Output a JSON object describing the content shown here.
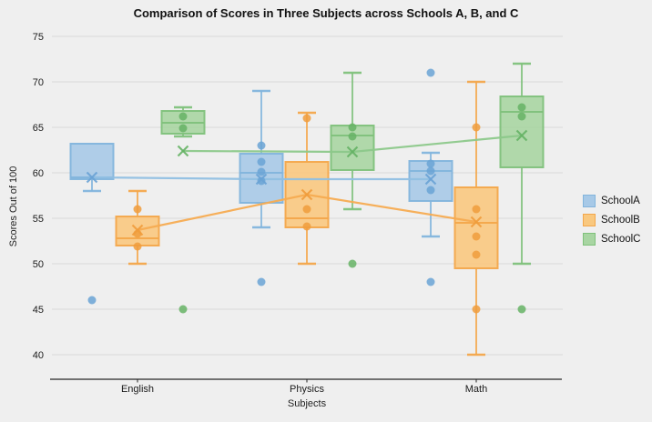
{
  "figure": {
    "background": "#efefef",
    "grid_color": "#d8d8d8",
    "axis_color": "#262626",
    "text_color": "#1a1a1a"
  },
  "chart_data": {
    "type": "boxplot",
    "title": "Comparison of Scores in Three Subjects across Schools A, B, and C",
    "xlabel": "Subjects",
    "ylabel": "Scores Out of 100",
    "categories": [
      "English",
      "Physics",
      "Math"
    ],
    "yticks": [
      40,
      45,
      50,
      55,
      60,
      65,
      70,
      75
    ],
    "ylim": [
      37.5,
      75
    ],
    "grid": "horizontal",
    "legend": {
      "position": "right",
      "entries": [
        "SchoolA",
        "SchoolB",
        "SchoolC"
      ]
    },
    "mean_markers": "x",
    "mean_trend_lines": true,
    "series": [
      {
        "name": "SchoolA",
        "color_fill": "#a7c9e7",
        "color_edge": "#82b4dc",
        "color_point": "#6aa3d5",
        "color_mean_line": "#90bfe2",
        "boxes": [
          {
            "category": "English",
            "whisker_low": 58,
            "q1": 59.3,
            "median": 59.5,
            "q3": 63.2,
            "whisker_high": 63.2,
            "mean": 59.5,
            "points": [],
            "outliers": [
              46
            ]
          },
          {
            "category": "Physics",
            "whisker_low": 54,
            "q1": 56.7,
            "median": 60,
            "q3": 62.1,
            "whisker_high": 69,
            "mean": 59.3,
            "points": [
              63,
              61.2,
              60.1,
              59.1
            ],
            "outliers": [
              48
            ]
          },
          {
            "category": "Math",
            "whisker_low": 53,
            "q1": 56.9,
            "median": 60.2,
            "q3": 61.3,
            "whisker_high": 62.2,
            "mean": 59.3,
            "points": [
              61,
              60.2,
              58.1
            ],
            "outliers": [
              71,
              48
            ]
          }
        ]
      },
      {
        "name": "SchoolB",
        "color_fill": "#f9c87f",
        "color_edge": "#f3a74b",
        "color_point": "#f09c3c",
        "color_mean_line": "#f5ab51",
        "boxes": [
          {
            "category": "English",
            "whisker_low": 50,
            "q1": 52,
            "median": 52.8,
            "q3": 55.2,
            "whisker_high": 58,
            "mean": 53.7,
            "points": [
              56,
              53.3,
              51.9
            ],
            "outliers": []
          },
          {
            "category": "Physics",
            "whisker_low": 50,
            "q1": 54,
            "median": 55,
            "q3": 61.2,
            "whisker_high": 66.6,
            "mean": 57.6,
            "points": [
              66,
              56,
              54.1
            ],
            "outliers": []
          },
          {
            "category": "Math",
            "whisker_low": 40,
            "q1": 49.5,
            "median": 54.5,
            "q3": 58.4,
            "whisker_high": 70,
            "mean": 54.6,
            "points": [
              65,
              56,
              53,
              51,
              45
            ],
            "outliers": []
          }
        ]
      },
      {
        "name": "SchoolC",
        "color_fill": "#a8d5a2",
        "color_edge": "#7fc17b",
        "color_point": "#66b365",
        "color_mean_line": "#8cc88a",
        "boxes": [
          {
            "category": "English",
            "whisker_low": 64,
            "q1": 64.3,
            "median": 65.5,
            "q3": 66.8,
            "whisker_high": 67.2,
            "mean": 62.4,
            "points": [
              66.2,
              64.9
            ],
            "outliers": [
              45
            ]
          },
          {
            "category": "Physics",
            "whisker_low": 56,
            "q1": 60.3,
            "median": 64.1,
            "q3": 65.2,
            "whisker_high": 71,
            "mean": 62.3,
            "points": [
              65,
              64
            ],
            "outliers": [
              50
            ]
          },
          {
            "category": "Math",
            "whisker_low": 50,
            "q1": 60.6,
            "median": 66.7,
            "q3": 68.4,
            "whisker_high": 72,
            "mean": 64.1,
            "points": [
              67.2,
              66.2
            ],
            "outliers": [
              45
            ]
          }
        ]
      }
    ]
  }
}
